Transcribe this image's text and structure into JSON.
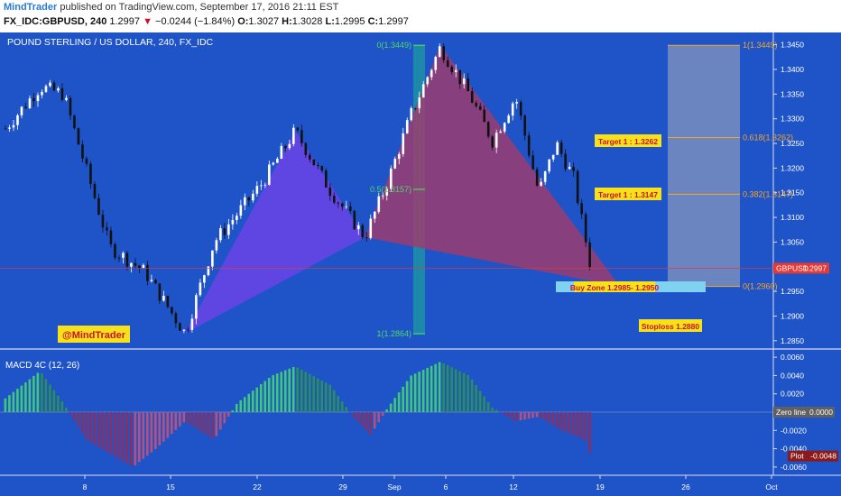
{
  "header": {
    "publisher": "MindTrader",
    "published_text": "published on TradingView.com, September 17, 2016 21:11 EST",
    "symbol": "FX_IDC:GBPUSD, 240",
    "last": "1.2997",
    "change": "−0.0244 (−1.84%)",
    "open_label": "O:",
    "open": "1.3027",
    "high_label": "H:",
    "high": "1.3028",
    "low_label": "L:",
    "low": "1.2995",
    "close_label": "C:",
    "close": "1.2997"
  },
  "colors": {
    "background": "#1f54c8",
    "bull_candle": "#ffffff",
    "bear_candle": "#111111",
    "bat_left": "#6b44e8",
    "bat_right": "#a33a6c",
    "fib_line": "#f5a623",
    "teal_band": "#1ea59a",
    "macd_up": "#3fc77a",
    "macd_down": "#8a2f62",
    "price_line": "#e03a3a"
  },
  "chart_data": [
    {
      "type": "candlestick",
      "title": "POUND STERLING / US DOLLAR, 240, FX_IDC",
      "y_axis": {
        "ylim": [
          1.2835,
          1.3475
        ],
        "ticks": [
          "1.3450",
          "1.3400",
          "1.3350",
          "1.3300",
          "1.3250",
          "1.3200",
          "1.3150",
          "1.3100",
          "1.3050",
          "1.3000",
          "1.2950",
          "1.2900",
          "1.2850"
        ]
      },
      "x_axis": {
        "tick_labels": [
          "8",
          "15",
          "22",
          "29",
          "Sep",
          "6",
          "12",
          "19",
          "26",
          "Oct"
        ]
      },
      "swing_points": [
        {
          "t": 0,
          "price": 1.328
        },
        {
          "t": 3,
          "price": 1.3365
        },
        {
          "t": 5,
          "price": 1.335
        },
        {
          "t": 9,
          "price": 1.304
        },
        {
          "t": 12,
          "price": 1.299
        },
        {
          "t": 15.5,
          "price": 1.2865
        },
        {
          "t": 18,
          "price": 1.305
        },
        {
          "t": 22,
          "price": 1.3165
        },
        {
          "t": 25,
          "price": 1.3275
        },
        {
          "t": 28,
          "price": 1.3155
        },
        {
          "t": 31,
          "price": 1.306
        },
        {
          "t": 33,
          "price": 1.3175
        },
        {
          "t": 35,
          "price": 1.331
        },
        {
          "t": 37.5,
          "price": 1.3445
        },
        {
          "t": 40,
          "price": 1.335
        },
        {
          "t": 42,
          "price": 1.3255
        },
        {
          "t": 44,
          "price": 1.3345
        },
        {
          "t": 46,
          "price": 1.315
        },
        {
          "t": 47.5,
          "price": 1.325
        },
        {
          "t": 49,
          "price": 1.318
        },
        {
          "t": 50.5,
          "price": 1.2997
        }
      ],
      "pattern": {
        "points": [
          {
            "t": 15.5,
            "price": 1.2865
          },
          {
            "t": 25,
            "price": 1.3275
          },
          {
            "t": 31,
            "price": 1.306
          },
          {
            "t": 37.5,
            "price": 1.3449
          },
          {
            "t": 53,
            "price": 1.296
          }
        ]
      },
      "fib_left": [
        {
          "label": "0(1.3449)",
          "price": 1.3449
        },
        {
          "label": "0.5(1.3157)",
          "price": 1.3157
        },
        {
          "label": "1(1.2864)",
          "price": 1.2864
        }
      ],
      "fib_right": [
        {
          "label": "1(1.3449)",
          "price": 1.3449
        },
        {
          "label": "0.618(1.3262)",
          "price": 1.3262
        },
        {
          "label": "0.382(1.3147)",
          "price": 1.3147
        },
        {
          "label": "0(1.2960)",
          "price": 1.296
        }
      ],
      "annotations": {
        "target1": "Target 1 : 1.3262",
        "target2": "Target 1 : 1.3147",
        "buy_zone": "Buy Zone 1.2985- 1.2950",
        "stoploss": "Stoploss 1.2880",
        "watermark": "@MindTrader"
      },
      "price_tag": {
        "label": "GBPUSD",
        "value": "1.2997",
        "price": 1.2997
      }
    },
    {
      "type": "histogram",
      "title": "MACD 4C (12, 26)",
      "y_axis": {
        "ylim": [
          -0.0068,
          0.0068
        ],
        "ticks": [
          "0.0060",
          "0.0040",
          "0.0020",
          "0.0000",
          "-0.0020",
          "-0.0040",
          "-0.0060"
        ]
      },
      "zero_tag": {
        "label": "Zero line",
        "value": "0.0000"
      },
      "plot_tag": {
        "label": "Plot",
        "value": "-0.0048",
        "level": -0.0048
      },
      "envelope": [
        {
          "t": 0,
          "v": 0.0015
        },
        {
          "t": 3,
          "v": 0.0045
        },
        {
          "t": 5,
          "v": 0.001
        },
        {
          "t": 7,
          "v": -0.003
        },
        {
          "t": 11,
          "v": -0.006
        },
        {
          "t": 13,
          "v": -0.004
        },
        {
          "t": 15.5,
          "v": -0.001
        },
        {
          "t": 18,
          "v": -0.003
        },
        {
          "t": 20,
          "v": 0.001
        },
        {
          "t": 23,
          "v": 0.004
        },
        {
          "t": 25,
          "v": 0.005
        },
        {
          "t": 28,
          "v": 0.003
        },
        {
          "t": 30,
          "v": -0.0005
        },
        {
          "t": 31.5,
          "v": -0.0025
        },
        {
          "t": 33,
          "v": 0.0005
        },
        {
          "t": 35,
          "v": 0.004
        },
        {
          "t": 37.5,
          "v": 0.0055
        },
        {
          "t": 40,
          "v": 0.004
        },
        {
          "t": 42,
          "v": 0.0005
        },
        {
          "t": 44,
          "v": -0.001
        },
        {
          "t": 46,
          "v": -0.0005
        },
        {
          "t": 48,
          "v": -0.002
        },
        {
          "t": 50,
          "v": -0.003
        },
        {
          "t": 50.5,
          "v": -0.0048
        }
      ]
    }
  ]
}
